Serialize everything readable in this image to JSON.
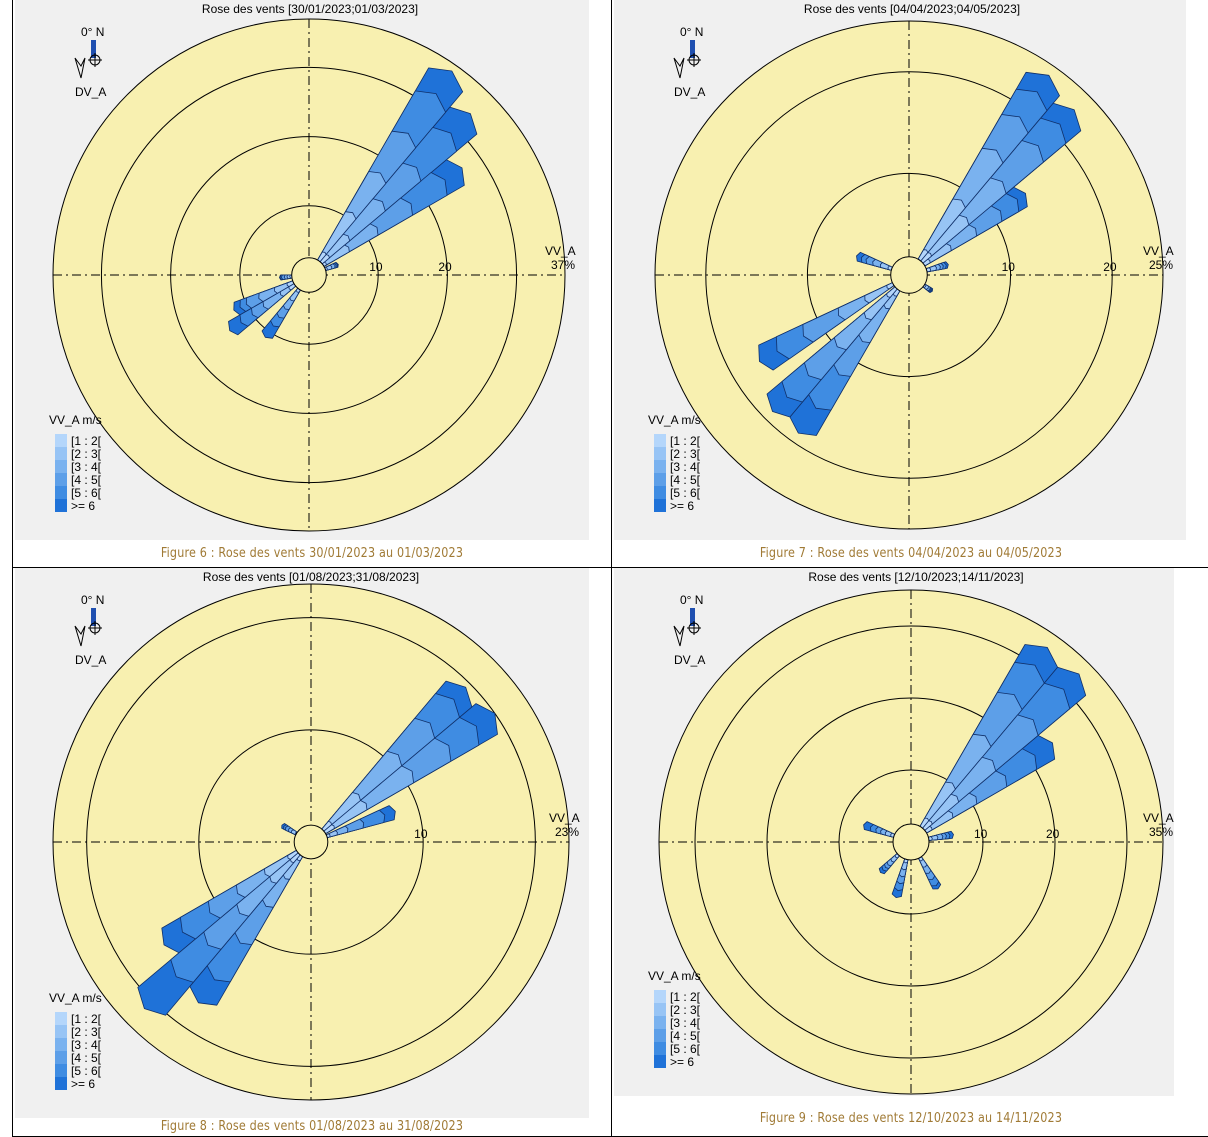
{
  "chart_data": [
    {
      "type": "wind-rose",
      "title": "Rose des vents [30/01/2023;01/03/2023]",
      "caption": "Figure 6 : Rose des vents 30/01/2023 au 01/03/2023",
      "north_label": "0° N",
      "direction_variable": "DV_A",
      "speed_variable": "VV_A",
      "max_percent_label": "37%",
      "max_percent": 37,
      "rings": [
        10,
        20,
        30
      ],
      "ring_labels": [
        "10",
        "20"
      ],
      "legend_title": "VV_A m/s",
      "speed_classes": [
        "[1 : 2[",
        "[2 : 3[",
        "[3 : 4[",
        "[4 : 5[",
        "[5 : 6[",
        ">= 6"
      ],
      "calm_radius": 2.5,
      "petals": [
        {
          "direction": 35,
          "cumulative": [
            4,
            11,
            18,
            25,
            32,
            36
          ]
        },
        {
          "direction": 45,
          "cumulative": [
            4,
            8,
            15,
            22,
            29,
            33
          ]
        },
        {
          "direction": 55,
          "cumulative": [
            3,
            7,
            12,
            18,
            24,
            27
          ]
        },
        {
          "direction": 70,
          "cumulative": [
            2.8,
            3.5,
            4,
            4.2,
            4.4,
            4.5
          ]
        },
        {
          "direction": 215,
          "cumulative": [
            3,
            4.5,
            6,
            7.5,
            9,
            11
          ]
        },
        {
          "direction": 235,
          "cumulative": [
            3.5,
            5,
            8,
            10,
            12,
            14
          ]
        },
        {
          "direction": 245,
          "cumulative": [
            3.5,
            5.5,
            8,
            10,
            11,
            12
          ]
        },
        {
          "direction": 265,
          "cumulative": [
            2.8,
            3.2,
            3.6,
            4,
            4.2,
            4.3
          ]
        }
      ]
    },
    {
      "type": "wind-rose",
      "title": "Rose des vents [04/04/2023;04/05/2023]",
      "caption": "Figure 7 : Rose des vents 04/04/2023 au 04/05/2023",
      "north_label": "0° N",
      "direction_variable": "DV_A",
      "speed_variable": "VV_A",
      "max_percent_label": "25%",
      "max_percent": 25,
      "rings": [
        10,
        20
      ],
      "ring_labels": [
        "10",
        "20"
      ],
      "legend_title": "VV_A m/s",
      "speed_classes": [
        "[1 : 2[",
        "[2 : 3[",
        "[3 : 4[",
        "[4 : 5[",
        "[5 : 6[",
        ">= 6"
      ],
      "calm_radius": 1.8,
      "petals": [
        {
          "direction": 35,
          "cumulative": [
            3,
            9,
            15,
            19,
            22,
            24
          ]
        },
        {
          "direction": 45,
          "cumulative": [
            3,
            8,
            13,
            18,
            21,
            23
          ]
        },
        {
          "direction": 55,
          "cumulative": [
            2.5,
            5,
            8,
            11,
            13,
            14
          ]
        },
        {
          "direction": 75,
          "cumulative": [
            2.2,
            2.8,
            3.2,
            3.5,
            3.8,
            4
          ]
        },
        {
          "direction": 125,
          "cumulative": [
            2,
            2.3,
            2.5,
            2.6,
            2.7,
            2.8
          ]
        },
        {
          "direction": 215,
          "cumulative": [
            2.5,
            4,
            8,
            12,
            16,
            19
          ]
        },
        {
          "direction": 225,
          "cumulative": [
            3,
            6,
            10,
            14,
            17,
            19
          ]
        },
        {
          "direction": 240,
          "cumulative": [
            2.5,
            5,
            8,
            12,
            15,
            17
          ]
        },
        {
          "direction": 290,
          "cumulative": [
            2.2,
            3,
            3.8,
            4.5,
            5,
            5.5
          ]
        }
      ]
    },
    {
      "type": "wind-rose",
      "title": "Rose des vents [01/08/2023;31/08/2023]",
      "caption": "Figure 8 : Rose des vents 01/08/2023 au 31/08/2023",
      "north_label": "0° N",
      "direction_variable": "DV_A",
      "speed_variable": "VV_A",
      "max_percent_label": "23%",
      "max_percent": 23,
      "rings": [
        10,
        20
      ],
      "ring_labels": [
        "10"
      ],
      "legend_title": "VV_A m/s",
      "speed_classes": [
        "[1 : 2[",
        "[2 : 3[",
        "[3 : 4[",
        "[4 : 5[",
        "[5 : 6[",
        ">= 6"
      ],
      "calm_radius": 1.5,
      "petals": [
        {
          "direction": 45,
          "cumulative": [
            2.5,
            6,
            11,
            15,
            18,
            19.5
          ]
        },
        {
          "direction": 55,
          "cumulative": [
            2.5,
            6,
            11,
            15,
            18,
            20
          ]
        },
        {
          "direction": 70,
          "cumulative": [
            1.8,
            2.5,
            3.5,
            5,
            7,
            8
          ]
        },
        {
          "direction": 215,
          "cumulative": [
            2,
            4,
            7,
            11,
            15,
            17.5
          ]
        },
        {
          "direction": 225,
          "cumulative": [
            2.5,
            5,
            9,
            13,
            17,
            21
          ]
        },
        {
          "direction": 235,
          "cumulative": [
            2.5,
            5,
            8,
            11,
            14,
            16
          ]
        },
        {
          "direction": 300,
          "cumulative": [
            1.6,
            2,
            2.3,
            2.6,
            2.8,
            3
          ]
        }
      ]
    },
    {
      "type": "wind-rose",
      "title": "Rose des vents [12/10/2023;14/11/2023]",
      "caption": "Figure 9 : Rose des vents 12/10/2023 au 14/11/2023",
      "north_label": "0° N",
      "direction_variable": "DV_A",
      "speed_variable": "VV_A",
      "max_percent_label": "35%",
      "max_percent": 35,
      "rings": [
        10,
        20,
        30
      ],
      "ring_labels": [
        "10",
        "20"
      ],
      "legend_title": "VV_A m/s",
      "speed_classes": [
        "[1 : 2[",
        "[2 : 3[",
        "[3 : 4[",
        "[4 : 5[",
        "[5 : 6[",
        ">= 6"
      ],
      "calm_radius": 2.5,
      "petals": [
        {
          "direction": 35,
          "cumulative": [
            4,
            10,
            18,
            25,
            30,
            33
          ]
        },
        {
          "direction": 45,
          "cumulative": [
            4,
            9,
            16,
            24,
            30,
            33
          ]
        },
        {
          "direction": 55,
          "cumulative": [
            3.5,
            7,
            11,
            16,
            21,
            24
          ]
        },
        {
          "direction": 80,
          "cumulative": [
            3,
            3.8,
            4.5,
            5,
            5.5,
            6
          ]
        },
        {
          "direction": 150,
          "cumulative": [
            3,
            4,
            5,
            6,
            7,
            7.5
          ]
        },
        {
          "direction": 195,
          "cumulative": [
            3,
            4,
            5,
            6,
            7,
            8
          ]
        },
        {
          "direction": 225,
          "cumulative": [
            3,
            3.8,
            4.5,
            5,
            5.5,
            6
          ]
        },
        {
          "direction": 290,
          "cumulative": [
            3,
            3.8,
            4.5,
            5.2,
            6,
            7
          ]
        }
      ]
    }
  ],
  "colors": {
    "panel_background": "#f0f0f0",
    "rose_background": "#f8f0b0",
    "speed_class_colors": [
      "#b4d6fb",
      "#97c4f5",
      "#7ab2ef",
      "#5d9fe8",
      "#3f8ce2",
      "#1f72d8"
    ],
    "caption": "#a07a35"
  }
}
